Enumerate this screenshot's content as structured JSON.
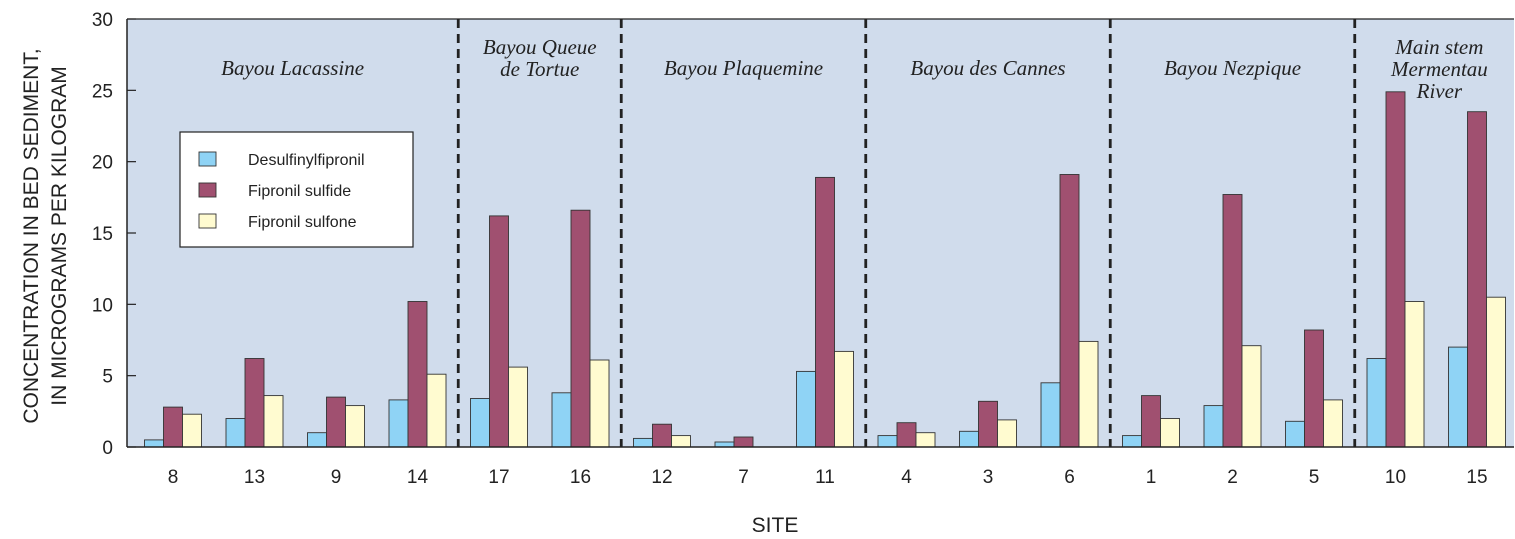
{
  "chart_data": {
    "type": "bar",
    "ylabel_line1": "CONCENTRATION IN BED SEDIMENT,",
    "ylabel_line2": "IN MICROGRAMS PER KILOGRAM",
    "xlabel": "SITE",
    "ylim": [
      0,
      30
    ],
    "yticks": [
      "0",
      "5",
      "10",
      "15",
      "20",
      "25",
      "30"
    ],
    "categories": [
      "8",
      "13",
      "9",
      "14",
      "17",
      "16",
      "12",
      "7",
      "11",
      "4",
      "3",
      "6",
      "1",
      "2",
      "5",
      "10",
      "15"
    ],
    "series": [
      {
        "name": "Desulfinylfipronil",
        "color": "#8fd3f5",
        "values": [
          0.5,
          2.0,
          1.0,
          3.3,
          3.4,
          3.8,
          0.6,
          0.35,
          5.3,
          0.8,
          1.1,
          4.5,
          0.8,
          2.9,
          1.8,
          6.2,
          7.0
        ]
      },
      {
        "name": "Fipronil sulfide",
        "color": "#a05070",
        "values": [
          2.8,
          6.2,
          3.5,
          10.2,
          16.2,
          16.6,
          1.6,
          0.7,
          18.9,
          1.7,
          3.2,
          19.1,
          3.6,
          17.7,
          8.2,
          24.9,
          23.5
        ]
      },
      {
        "name": "Fipronil sulfone",
        "color": "#fffbd0",
        "values": [
          2.3,
          3.6,
          2.9,
          5.1,
          5.6,
          6.1,
          0.8,
          0.0,
          6.7,
          1.0,
          1.9,
          7.4,
          2.0,
          7.1,
          3.3,
          10.2,
          10.5
        ]
      }
    ],
    "groups": [
      {
        "lines": [
          "Bayou Lacassine"
        ],
        "sites": 4
      },
      {
        "lines": [
          "Bayou Queue",
          "de Tortue"
        ],
        "sites": 2
      },
      {
        "lines": [
          "Bayou Plaquemine"
        ],
        "sites": 3
      },
      {
        "lines": [
          "Bayou des Cannes"
        ],
        "sites": 3
      },
      {
        "lines": [
          "Bayou Nezpique"
        ],
        "sites": 3
      },
      {
        "lines": [
          "Main stem",
          "Mermentau",
          "River"
        ],
        "sites": 2
      }
    ],
    "plot_background": "#d0dcec",
    "legend_position": "left"
  }
}
